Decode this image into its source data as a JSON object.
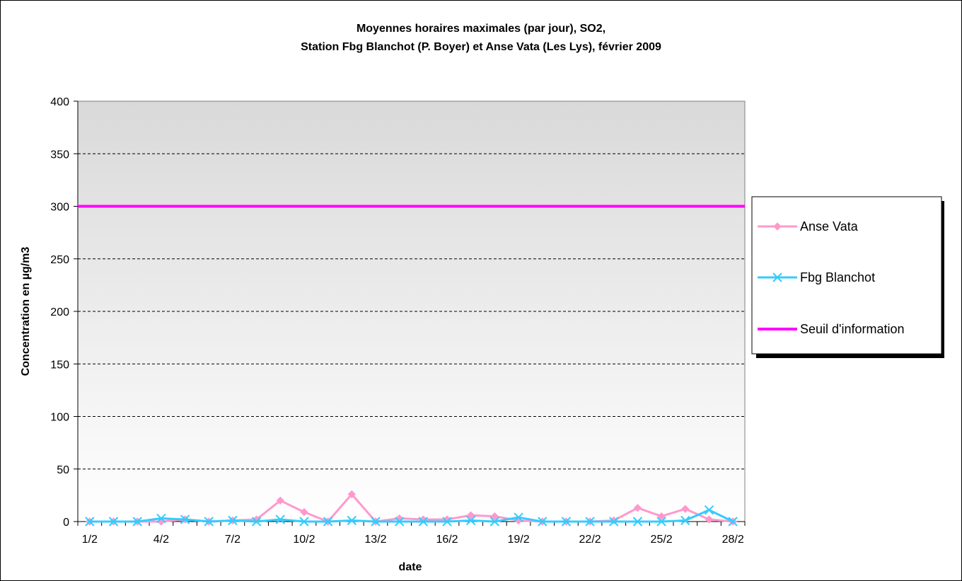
{
  "chart_data": {
    "type": "line",
    "title_lines": [
      "Moyennes horaires maximales (par jour), SO2,",
      "Station Fbg Blanchot (P. Boyer) et Anse Vata (Les Lys), février 2009"
    ],
    "xlabel": "date",
    "ylabel": "Concentration en µg/m3",
    "ylim": [
      0,
      400
    ],
    "y_ticks": [
      0,
      50,
      100,
      150,
      200,
      250,
      300,
      350,
      400
    ],
    "x": [
      "1/2",
      "2/2",
      "3/2",
      "4/2",
      "5/2",
      "6/2",
      "7/2",
      "8/2",
      "9/2",
      "10/2",
      "11/2",
      "12/2",
      "13/2",
      "14/2",
      "15/2",
      "16/2",
      "17/2",
      "18/2",
      "19/2",
      "20/2",
      "21/2",
      "22/2",
      "23/2",
      "24/2",
      "25/2",
      "26/2",
      "27/2",
      "28/2"
    ],
    "x_tick_labels": [
      "1/2",
      "4/2",
      "7/2",
      "10/2",
      "13/2",
      "16/2",
      "19/2",
      "22/2",
      "25/2",
      "28/2"
    ],
    "grid": true,
    "legend_position": "right",
    "series": [
      {
        "name": "Anse Vata",
        "color": "#ff99cc",
        "marker": "diamond",
        "values": [
          0,
          0,
          0,
          0,
          2,
          0,
          1,
          2,
          20,
          9,
          0,
          26,
          0,
          3,
          2,
          2,
          6,
          5,
          1,
          0,
          0,
          0,
          1,
          13,
          5,
          12,
          2,
          0
        ]
      },
      {
        "name": "Fbg Blanchot",
        "color": "#33ccff",
        "marker": "x",
        "values": [
          0,
          0,
          0,
          3,
          2,
          0,
          1,
          0,
          2,
          0,
          0,
          1,
          0,
          0,
          0,
          0,
          1,
          0,
          4,
          0,
          0,
          0,
          0,
          0,
          0,
          1,
          11,
          0
        ]
      },
      {
        "name": "Seuil d'information",
        "color": "#ff00ff",
        "marker": "none",
        "values": [
          300,
          300,
          300,
          300,
          300,
          300,
          300,
          300,
          300,
          300,
          300,
          300,
          300,
          300,
          300,
          300,
          300,
          300,
          300,
          300,
          300,
          300,
          300,
          300,
          300,
          300,
          300,
          300
        ]
      }
    ],
    "plot_background": "#d9d9d9 to #ffffff gradient"
  }
}
